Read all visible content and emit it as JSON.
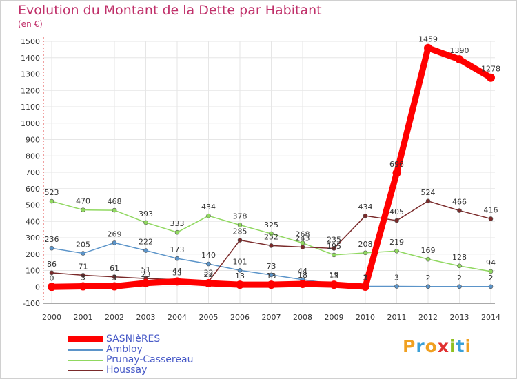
{
  "chart_data": {
    "type": "line",
    "title": "Evolution du Montant de la Dette par Habitant",
    "unit_label": "(en €)",
    "categories": [
      "2000",
      "2001",
      "2002",
      "2003",
      "2004",
      "2005",
      "2006",
      "2007",
      "2008",
      "2009",
      "2010",
      "2011",
      "2012",
      "2013",
      "2014"
    ],
    "y_ticks": [
      "-100",
      "0",
      "100",
      "200",
      "300",
      "400",
      "500",
      "600",
      "700",
      "800",
      "900",
      "1000",
      "1100",
      "1200",
      "1300",
      "1400",
      "1500"
    ],
    "ylim": [
      -100,
      1500
    ],
    "grid": true,
    "legend_position": "bottom-left",
    "series": [
      {
        "name": "SASNIèRES",
        "color": "#ff0000",
        "width": 9,
        "marker_r": 6,
        "values": [
          0,
          3,
          3,
          23,
          33,
          22,
          13,
          13,
          18,
          13,
          1,
          696,
          1459,
          1390,
          1278
        ],
        "labels": [
          "0",
          "3",
          "3",
          "23",
          "33",
          "22",
          "13",
          "13",
          "18",
          "13",
          "1",
          "696",
          "1459",
          "1390",
          "1278"
        ]
      },
      {
        "name": "Ambloy",
        "color": "#5b94c9",
        "width": 1.5,
        "marker_r": 3,
        "values": [
          236,
          205,
          269,
          222,
          173,
          140,
          101,
          73,
          44,
          19,
          3,
          3,
          2,
          2,
          2
        ],
        "labels": [
          "236",
          "205",
          "269",
          "222",
          "173",
          "140",
          "101",
          "73",
          "44",
          "19",
          "3",
          "3",
          "2",
          "2",
          "2"
        ]
      },
      {
        "name": "Prunay-Cassereau",
        "color": "#90d860",
        "width": 1.5,
        "marker_r": 3,
        "values": [
          523,
          470,
          468,
          393,
          333,
          434,
          378,
          325,
          268,
          195,
          208,
          219,
          169,
          128,
          94
        ],
        "labels": [
          "523",
          "470",
          "468",
          "393",
          "333",
          "434",
          "378",
          "325",
          "268",
          "195",
          "208",
          "219",
          "169",
          "128",
          "94"
        ]
      },
      {
        "name": "Houssay",
        "color": "#7a2a2a",
        "width": 1.5,
        "marker_r": 3,
        "values": [
          86,
          71,
          61,
          51,
          44,
          32,
          285,
          252,
          243,
          235,
          434,
          405,
          524,
          466,
          416
        ],
        "labels": [
          "86",
          "71",
          "61",
          "51",
          "44",
          "32",
          "285",
          "252",
          "243",
          "235",
          "434",
          "405",
          "524",
          "466",
          "416"
        ]
      }
    ]
  },
  "legend": [
    {
      "label": "SASNIèRES",
      "color": "#ff0000"
    },
    {
      "label": "Ambloy",
      "color": "#5b94c9"
    },
    {
      "label": "Prunay-Cassereau",
      "color": "#90d860"
    },
    {
      "label": "Houssay",
      "color": "#7a2a2a"
    }
  ],
  "logo": {
    "text": "Proxiti",
    "letter_colors": [
      "#f0a020",
      "#3aa0d8",
      "#f0a020",
      "#e03030",
      "#90c020",
      "#3aa0d8",
      "#f0a020"
    ]
  }
}
